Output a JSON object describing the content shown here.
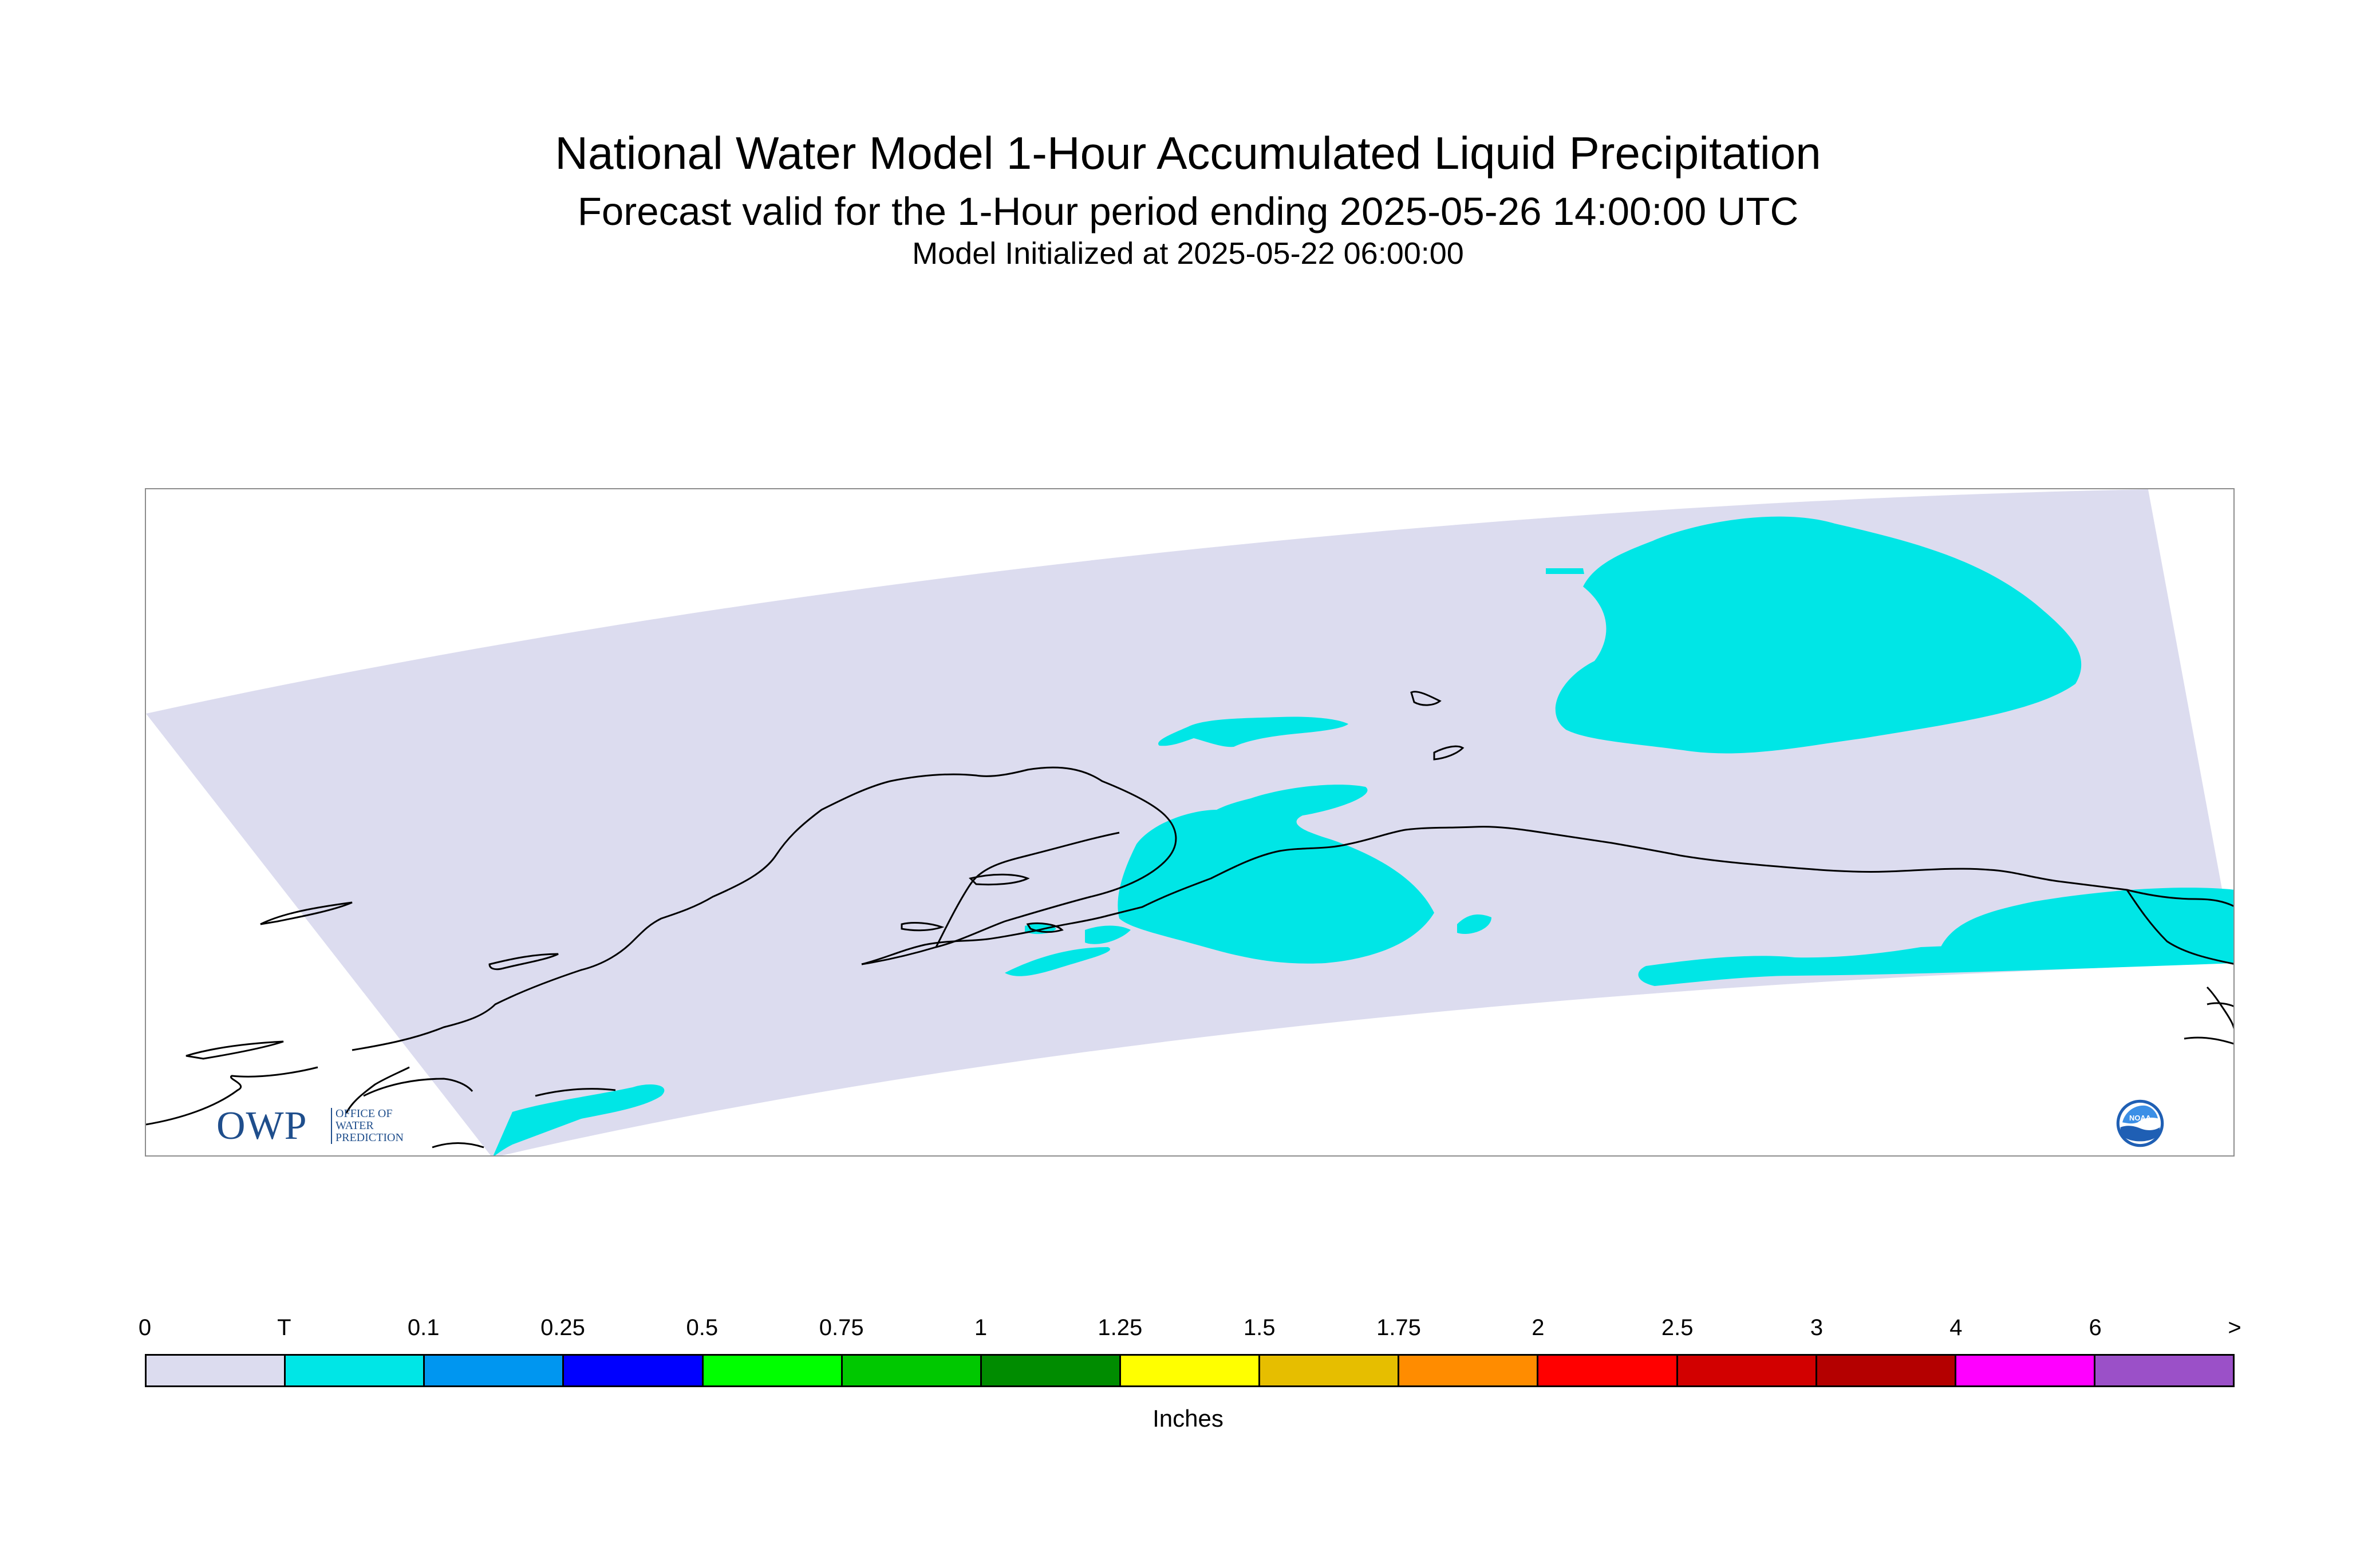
{
  "title": {
    "main": "National Water Model 1-Hour Accumulated Liquid Precipitation",
    "sub": "Forecast valid for the 1-Hour period ending 2025-05-26 14:00:00 UTC",
    "init": "Model Initialized at 2025-05-22 06:00:00"
  },
  "map": {
    "domain_color": "#dcdcef",
    "precip_trace_color": "#00e6e6",
    "coastline_color": "#000000"
  },
  "logos": {
    "owp": {
      "letters": "OWP",
      "line1": "OFFICE OF",
      "line2": "WATER",
      "line3": "PREDICTION"
    },
    "noaa": {
      "text": "NOAA"
    }
  },
  "legend": {
    "units": "Inches",
    "ticks": [
      "0",
      "T",
      "0.1",
      "0.25",
      "0.5",
      "0.75",
      "1",
      "1.25",
      "1.5",
      "1.75",
      "2",
      "2.5",
      "3",
      "4",
      "6",
      ">"
    ],
    "colors": [
      "#dcdcef",
      "#00e6e6",
      "#0096f0",
      "#0000ff",
      "#00ff00",
      "#00c800",
      "#008c00",
      "#ffff00",
      "#e6be00",
      "#ff8c00",
      "#ff0000",
      "#d20000",
      "#b40000",
      "#ff00ff",
      "#9b50c8"
    ]
  }
}
